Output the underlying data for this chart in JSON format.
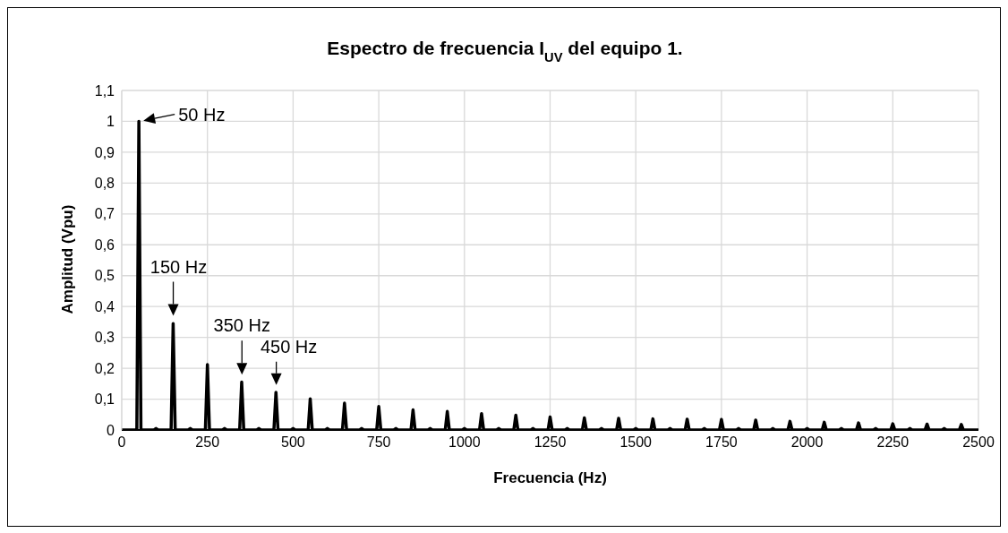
{
  "chart_data": {
    "type": "line",
    "title": "Espectro de frecuencia I$_{UV}$ del equipo 1.",
    "xlabel": "Frecuencia (Hz)",
    "ylabel": "Amplitud (Vpu)",
    "series": [
      {
        "color": "#000000",
        "x": [
          0,
          44,
          50,
          56,
          94,
          100,
          106,
          144,
          150,
          156,
          194,
          200,
          206,
          244,
          250,
          256,
          294,
          300,
          306,
          344,
          350,
          356,
          394,
          400,
          406,
          444,
          450,
          456,
          494,
          500,
          506,
          544,
          550,
          556,
          594,
          600,
          606,
          644,
          650,
          656,
          694,
          700,
          706,
          744,
          750,
          756,
          794,
          800,
          806,
          844,
          850,
          856,
          894,
          900,
          906,
          944,
          950,
          956,
          994,
          1000,
          1006,
          1044,
          1050,
          1056,
          1094,
          1100,
          1106,
          1144,
          1150,
          1156,
          1194,
          1200,
          1206,
          1244,
          1250,
          1256,
          1294,
          1300,
          1306,
          1344,
          1350,
          1356,
          1394,
          1400,
          1406,
          1444,
          1450,
          1456,
          1494,
          1500,
          1506,
          1544,
          1550,
          1556,
          1594,
          1600,
          1606,
          1644,
          1650,
          1656,
          1694,
          1700,
          1706,
          1744,
          1750,
          1756,
          1794,
          1800,
          1806,
          1844,
          1850,
          1856,
          1894,
          1900,
          1906,
          1944,
          1950,
          1956,
          1994,
          2000,
          2006,
          2044,
          2050,
          2056,
          2094,
          2100,
          2106,
          2144,
          2150,
          2156,
          2194,
          2200,
          2206,
          2244,
          2250,
          2256,
          2294,
          2300,
          2306,
          2344,
          2350,
          2356,
          2394,
          2400,
          2406,
          2444,
          2450,
          2456,
          2500
        ],
        "values": [
          0,
          0,
          1,
          0,
          0,
          0.005,
          0,
          0,
          0.345,
          0,
          0,
          0.005,
          0,
          0,
          0.212,
          0,
          0,
          0.005,
          0,
          0,
          0.155,
          0,
          0,
          0.005,
          0,
          0,
          0.122,
          0,
          0,
          0.005,
          0,
          0,
          0.101,
          0,
          0,
          0.005,
          0,
          0,
          0.087,
          0,
          0,
          0.005,
          0,
          0,
          0.076,
          0,
          0,
          0.005,
          0,
          0,
          0.065,
          0,
          0,
          0.005,
          0,
          0,
          0.06,
          0,
          0,
          0.005,
          0,
          0,
          0.053,
          0,
          0,
          0.005,
          0,
          0,
          0.048,
          0,
          0,
          0.005,
          0,
          0,
          0.042,
          0,
          0,
          0.005,
          0,
          0,
          0.039,
          0,
          0,
          0.005,
          0,
          0,
          0.038,
          0,
          0,
          0.005,
          0,
          0,
          0.036,
          0,
          0,
          0.005,
          0,
          0,
          0.035,
          0,
          0,
          0.005,
          0,
          0,
          0.034,
          0,
          0,
          0.005,
          0,
          0,
          0.032,
          0,
          0,
          0.005,
          0,
          0,
          0.028,
          0,
          0,
          0.005,
          0,
          0,
          0.025,
          0,
          0,
          0.005,
          0,
          0,
          0.023,
          0,
          0,
          0.005,
          0,
          0,
          0.02,
          0,
          0,
          0.005,
          0,
          0,
          0.019,
          0,
          0,
          0.005,
          0,
          0,
          0.018,
          0,
          0
        ]
      }
    ],
    "xlim": [
      0,
      2500
    ],
    "xticks": [
      0,
      250,
      500,
      750,
      1000,
      1250,
      1500,
      1750,
      2000,
      2250,
      2500
    ],
    "ylim": [
      0,
      1.1
    ],
    "yticks": [
      {
        "value": 0,
        "label": "0"
      },
      {
        "value": 0.1,
        "label": "0,1"
      },
      {
        "value": 0.2,
        "label": "0,2"
      },
      {
        "value": 0.3,
        "label": "0,3"
      },
      {
        "value": 0.4,
        "label": "0,4"
      },
      {
        "value": 0.5,
        "label": "0,5"
      },
      {
        "value": 0.6,
        "label": "0,6"
      },
      {
        "value": 0.7,
        "label": "0,7"
      },
      {
        "value": 0.8,
        "label": "0,8"
      },
      {
        "value": 0.9,
        "label": "0,9"
      },
      {
        "value": 1,
        "label": "1"
      },
      {
        "value": 1.1,
        "label": "1,1"
      }
    ],
    "grid": true,
    "marker": "none",
    "line_style": "solid",
    "annotations": [
      {
        "text": "50 Hz",
        "x": 50,
        "y": 1
      },
      {
        "text": "150 Hz",
        "x": 150,
        "y": 0.345
      },
      {
        "text": "350 Hz",
        "x": 350,
        "y": 0.155
      },
      {
        "text": "450 Hz",
        "x": 450,
        "y": 0.122
      }
    ]
  }
}
